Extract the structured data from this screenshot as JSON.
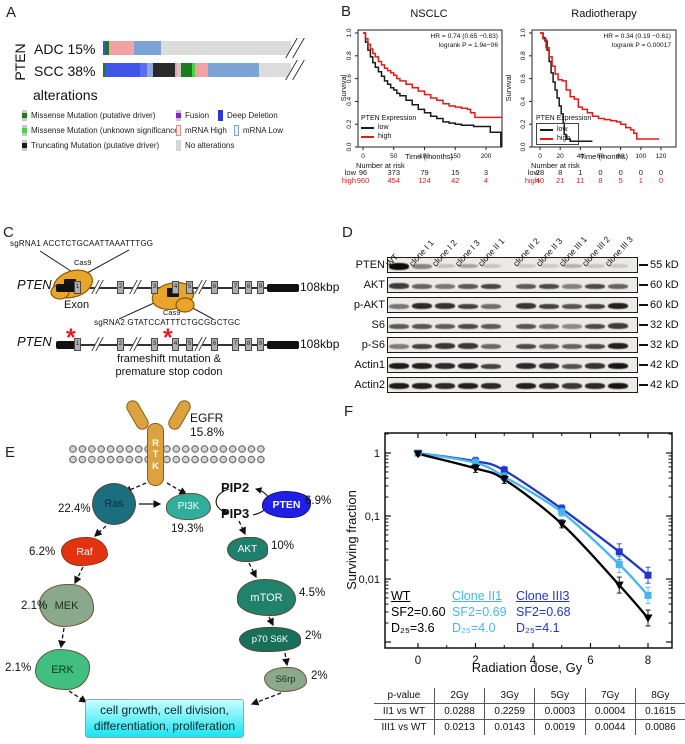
{
  "figure": {
    "panel_labels": {
      "a": "A",
      "b": "B",
      "c": "C",
      "d": "D",
      "e": "E",
      "f": "F"
    }
  },
  "panel_a": {
    "gene_label": "PTEN",
    "rows": [
      {
        "label": "ADC 15%",
        "segments": [
          {
            "color": "#3d50e0",
            "w": 1.2
          },
          {
            "color": "#1e7a1e",
            "w": 1.8
          },
          {
            "color": "#f2a2a2",
            "w": 13.5
          },
          {
            "color": "#7ba3d6",
            "w": 14.5
          },
          {
            "color": "#dcdcdc",
            "w": 69
          }
        ]
      },
      {
        "label": "SCC 38%",
        "segments": [
          {
            "color": "#1e7a1e",
            "w": 0.8
          },
          {
            "color": "#4054e8",
            "w": 19
          },
          {
            "color": "#5a6cf0",
            "w": 3.5
          },
          {
            "color": "#8fa8dc",
            "w": 3.2
          },
          {
            "color": "#2a2a2a",
            "w": 12
          },
          {
            "color": "#f2a2a2",
            "w": 0.8
          },
          {
            "color": "#c9c9c9",
            "w": 2.2
          },
          {
            "color": "#1e7a1e",
            "w": 6
          },
          {
            "color": "#45d445",
            "w": 1.5
          },
          {
            "color": "#f2a2a2",
            "w": 7
          },
          {
            "color": "#7ba3d6",
            "w": 27
          },
          {
            "color": "#dcdcdc",
            "w": 17
          }
        ]
      }
    ],
    "legend_title": "alterations",
    "legend": [
      {
        "label": "Missense Mutation (putative driver)",
        "color": "#1e7a1e",
        "style": "mut"
      },
      {
        "label": "Missense Mutation (unknown significance)",
        "color": "#45d445",
        "style": "mut"
      },
      {
        "label": "Truncating Mutation (putative driver)",
        "color": "#1a1a1a",
        "style": "mut"
      },
      {
        "label": "Fusion",
        "color": "#8b1fc9",
        "style": "mut"
      },
      {
        "label": "mRNA High",
        "color": "#e88a8a",
        "style": "hollow"
      },
      {
        "label": "No alterations",
        "color": "#d5d5d5",
        "style": "solid"
      },
      {
        "label": "Deep Deletion",
        "color": "#2a3bdc",
        "style": "solid"
      },
      {
        "label": "mRNA Low",
        "color": "#7ba3d6",
        "style": "hollow"
      }
    ]
  },
  "panel_c": {
    "sgrna1": "sgRNA1 ACCTCTGCAATTAAATTTGG",
    "sgrna2": "sgRNA2 GTATCCATTTCTGCGGCTGC",
    "cas9": "Cas9",
    "gene": "PTEN",
    "exon_label": "Exon",
    "size_label": "108kbp",
    "exon_numbers": [
      "1",
      "2",
      "3",
      "4",
      "5",
      "6",
      "7",
      "8",
      "9"
    ],
    "frameshift_line1": "frameshift mutation &",
    "frameshift_line2": "premature stop codon"
  },
  "panel_d": {
    "lanes": [
      "WT",
      "clone I 1",
      "clone I 2",
      "clone I 3",
      "clone II 1",
      "clone II 2",
      "clone II 3",
      "clone III 1",
      "clone III 2",
      "clone III 3"
    ],
    "rows": [
      {
        "label": "PTEN",
        "size": "55 kD",
        "bands": [
          1,
          0.38,
          0.06,
          0.22,
          0.05,
          0.03,
          0.03,
          0.15,
          0.04,
          0.03
        ]
      },
      {
        "label": "AKT",
        "size": "60 kD",
        "bands": [
          0.75,
          0.55,
          0.45,
          0.6,
          0.7,
          0.6,
          0.68,
          0.4,
          0.68,
          0.55
        ]
      },
      {
        "label": "p-AKT",
        "size": "60 kD",
        "bands": [
          0.45,
          0.85,
          0.8,
          0.72,
          0.5,
          0.78,
          0.72,
          0.62,
          0.72,
          0.9
        ]
      },
      {
        "label": "S6",
        "size": "32 kD",
        "bands": [
          0.6,
          0.62,
          0.58,
          0.68,
          0.6,
          0.62,
          0.5,
          0.35,
          0.68,
          0.75
        ]
      },
      {
        "label": "p-S6",
        "size": "32 kD",
        "bands": [
          0.42,
          0.72,
          0.78,
          0.78,
          0.52,
          0.68,
          0.55,
          0.55,
          0.68,
          0.9
        ]
      },
      {
        "label": "Actin1",
        "size": "42 kD",
        "bands": [
          0.92,
          0.9,
          0.85,
          0.88,
          0.72,
          0.85,
          0.82,
          0.65,
          0.8,
          0.95
        ]
      },
      {
        "label": "Actin2",
        "size": "42 kD",
        "bands": [
          0.92,
          0.9,
          0.85,
          0.9,
          0.85,
          0.9,
          0.85,
          0.78,
          0.85,
          0.95
        ]
      }
    ]
  },
  "panel_e": {
    "egfr": "EGFR",
    "egfr_pct": "15.8%",
    "rtk": "RTK",
    "pip2": "PIP2",
    "pip3": "PIP3",
    "ras": {
      "label": "Ras",
      "pct": "22.4%"
    },
    "raf": {
      "label": "Raf",
      "pct": "6.2%"
    },
    "mek": {
      "label": "MEK",
      "pct": "2.1%"
    },
    "erk": {
      "label": "ERK",
      "pct": "2.1%"
    },
    "pi3k": {
      "label": "PI3K",
      "pct": "19.3%"
    },
    "pten": {
      "label": "PTEN",
      "pct": "6.9%"
    },
    "akt": {
      "label": "AKT",
      "pct": "10%"
    },
    "mtor": {
      "label": "mTOR",
      "pct": "4.5%"
    },
    "p70s6k": {
      "label": "p70 S6K",
      "pct": "2%"
    },
    "s6rp": {
      "label": "S6rp",
      "pct": "2%"
    },
    "result1": "cell growth, cell division,",
    "result2": "differentiation, proliferation"
  },
  "panel_f": {
    "table": {
      "col_headers": [
        "p-value",
        "2Gy",
        "3Gy",
        "5Gy",
        "7Gy",
        "8Gy"
      ],
      "rows": [
        [
          "II1 vs WT",
          "0.0288",
          "0.2259",
          "0.0003",
          "0.0004",
          "0.1615"
        ],
        [
          "III1 vs WT",
          "0.0213",
          "0.0143",
          "0.0019",
          "0.0044",
          "0.0086"
        ]
      ]
    }
  },
  "chart_data": [
    {
      "id": "km_nsclc",
      "type": "line",
      "title": "NSCLC",
      "annotation": [
        "HR = 0.74 (0.65 −0.83)",
        "logrank P = 1.9e−06"
      ],
      "xlabel": "Time (months)",
      "ylabel": "Survival",
      "legend_title": "PTEN Expression",
      "xlim": [
        0,
        226
      ],
      "ylim": [
        0,
        1
      ],
      "xticks": [
        0,
        50,
        100,
        150,
        200
      ],
      "ytick_labels": [
        "1.0",
        "0.8",
        "0.6",
        "0.4",
        "0.2",
        "0.0"
      ],
      "yticks": [
        1.0,
        0.8,
        0.6,
        0.4,
        0.2,
        0.0
      ],
      "series": [
        {
          "name": "low",
          "color": "#1a1a1a",
          "step": true,
          "x": [
            0,
            4,
            8,
            12,
            16,
            20,
            25,
            30,
            35,
            40,
            45,
            50,
            55,
            60,
            70,
            80,
            90,
            100,
            110,
            120,
            130,
            140,
            150,
            160,
            170,
            180,
            195,
            205,
            207,
            220,
            224
          ],
          "y": [
            1.0,
            0.92,
            0.85,
            0.79,
            0.74,
            0.7,
            0.66,
            0.62,
            0.58,
            0.55,
            0.52,
            0.5,
            0.47,
            0.45,
            0.41,
            0.37,
            0.33,
            0.3,
            0.27,
            0.25,
            0.22,
            0.21,
            0.2,
            0.19,
            0.19,
            0.18,
            0.18,
            0.18,
            0.13,
            0.13,
            0.0
          ]
        },
        {
          "name": "high",
          "color": "#e31a1a",
          "step": true,
          "x": [
            0,
            4,
            8,
            12,
            16,
            20,
            25,
            30,
            35,
            40,
            45,
            50,
            55,
            60,
            70,
            80,
            90,
            100,
            110,
            120,
            130,
            140,
            150,
            160,
            170,
            175,
            180,
            182,
            226
          ],
          "y": [
            1.0,
            0.95,
            0.9,
            0.86,
            0.82,
            0.79,
            0.75,
            0.72,
            0.69,
            0.67,
            0.65,
            0.63,
            0.6,
            0.58,
            0.55,
            0.52,
            0.49,
            0.46,
            0.43,
            0.41,
            0.38,
            0.36,
            0.35,
            0.34,
            0.33,
            0.3,
            0.3,
            0.26,
            0.26
          ]
        }
      ],
      "number_at_risk": {
        "label": "Number at risk",
        "times": [
          0,
          50,
          100,
          150,
          200
        ],
        "row_labels": [
          "low",
          "high"
        ],
        "low": [
          "96",
          "373",
          "79",
          "15",
          "3"
        ],
        "high": [
          "960",
          "454",
          "124",
          "42",
          "4"
        ]
      }
    },
    {
      "id": "km_radiotherapy",
      "type": "line",
      "title": "Radiotherapy",
      "annotation": [
        "HR = 0.34 (0.19 −0.61)",
        "logrank P = 0.00017"
      ],
      "xlabel": "Time (months)",
      "ylabel": "Survival",
      "legend_title": "PTEN Expression",
      "xlim": [
        0,
        130
      ],
      "ylim": [
        0,
        1
      ],
      "xticks": [
        0,
        20,
        40,
        60,
        80,
        100,
        120
      ],
      "ytick_labels": [
        "1.0",
        "0.8",
        "0.6",
        "0.4",
        "0.2",
        "0.0"
      ],
      "yticks": [
        1.0,
        0.8,
        0.6,
        0.4,
        0.2,
        0.0
      ],
      "series": [
        {
          "name": "low",
          "color": "#1a1a1a",
          "step": true,
          "x": [
            0,
            3,
            5,
            7,
            9,
            11,
            13,
            15,
            17,
            19,
            21,
            23,
            24,
            26,
            30,
            52
          ],
          "y": [
            1.0,
            0.96,
            0.93,
            0.85,
            0.75,
            0.65,
            0.57,
            0.5,
            0.43,
            0.36,
            0.29,
            0.21,
            0.11,
            0.07,
            0.05,
            0.05
          ]
        },
        {
          "name": "high",
          "color": "#e31a1a",
          "step": true,
          "x": [
            0,
            3,
            6,
            9,
            12,
            15,
            18,
            22,
            26,
            30,
            34,
            38,
            42,
            47,
            52,
            58,
            64,
            70,
            76,
            80,
            85,
            90,
            93,
            96,
            118
          ],
          "y": [
            1.0,
            0.95,
            0.87,
            0.79,
            0.71,
            0.64,
            0.59,
            0.58,
            0.5,
            0.44,
            0.42,
            0.35,
            0.33,
            0.3,
            0.27,
            0.25,
            0.24,
            0.23,
            0.22,
            0.2,
            0.17,
            0.15,
            0.12,
            0.07,
            0.07
          ]
        }
      ],
      "number_at_risk": {
        "label": "Number at risk",
        "times": [
          0,
          20,
          40,
          60,
          80,
          100,
          120
        ],
        "row_labels": [
          "low",
          "high"
        ],
        "low": [
          "28",
          "8",
          "1",
          "0",
          "0",
          "0",
          "0"
        ],
        "high": [
          "40",
          "21",
          "11",
          "8",
          "5",
          "1",
          "0"
        ]
      }
    },
    {
      "id": "clonogenic_survival",
      "type": "scatter",
      "yscale": "log",
      "xlabel": "Radiation dose, Gy",
      "ylabel": "Surviving fraction",
      "xticks": [
        0,
        2,
        4,
        6,
        8
      ],
      "ytick_labels": [
        "1",
        "0,1",
        "0,01"
      ],
      "ytick_values": [
        1,
        0.1,
        0.01
      ],
      "series": [
        {
          "name": "WT",
          "color": "#000000",
          "marker": "triangle-down",
          "sf2": "SF2=0.60",
          "d25": "D₂₅=3.6",
          "x": [
            0,
            2,
            3,
            5,
            7,
            8
          ],
          "y": [
            0.97,
            0.57,
            0.38,
            0.075,
            0.008,
            0.0024
          ]
        },
        {
          "name": "Clone II1",
          "color": "#45b6f2",
          "marker": "square",
          "sf2": "SF2=0.69",
          "d25": "D₂₅=4.0",
          "x": [
            0,
            2,
            3,
            5,
            7,
            8
          ],
          "y": [
            1.0,
            0.7,
            0.42,
            0.115,
            0.017,
            0.0055
          ]
        },
        {
          "name": "Clone III3",
          "color": "#2336cc",
          "marker": "square",
          "sf2": "SF2=0.68",
          "d25": "D₂₅=4.1",
          "x": [
            0,
            2,
            3,
            5,
            7,
            8
          ],
          "y": [
            1.0,
            0.74,
            0.53,
            0.13,
            0.027,
            0.0115
          ]
        }
      ]
    }
  ]
}
